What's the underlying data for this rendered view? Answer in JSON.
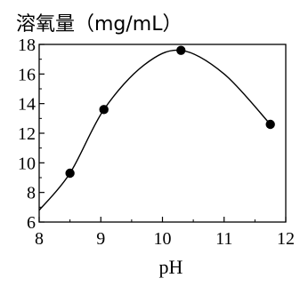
{
  "chart_data": {
    "type": "scatter",
    "title": "",
    "ylabel": "溶氧量（mg/mL）",
    "xlabel": "pH",
    "xlim": [
      8,
      12
    ],
    "ylim": [
      6,
      18
    ],
    "x_ticks": [
      8,
      9,
      10,
      11,
      12
    ],
    "y_ticks": [
      6,
      8,
      10,
      12,
      14,
      16,
      18
    ],
    "grid": false,
    "points": [
      {
        "x": 8.5,
        "y": 9.3
      },
      {
        "x": 9.05,
        "y": 13.6
      },
      {
        "x": 10.3,
        "y": 17.6
      },
      {
        "x": 11.75,
        "y": 12.6
      }
    ],
    "curve": [
      {
        "x": 8.0,
        "y": 6.8
      },
      {
        "x": 8.5,
        "y": 9.3
      },
      {
        "x": 9.05,
        "y": 13.6
      },
      {
        "x": 9.7,
        "y": 16.6
      },
      {
        "x": 10.3,
        "y": 17.6
      },
      {
        "x": 11.0,
        "y": 16.0
      },
      {
        "x": 11.75,
        "y": 12.6
      }
    ]
  }
}
